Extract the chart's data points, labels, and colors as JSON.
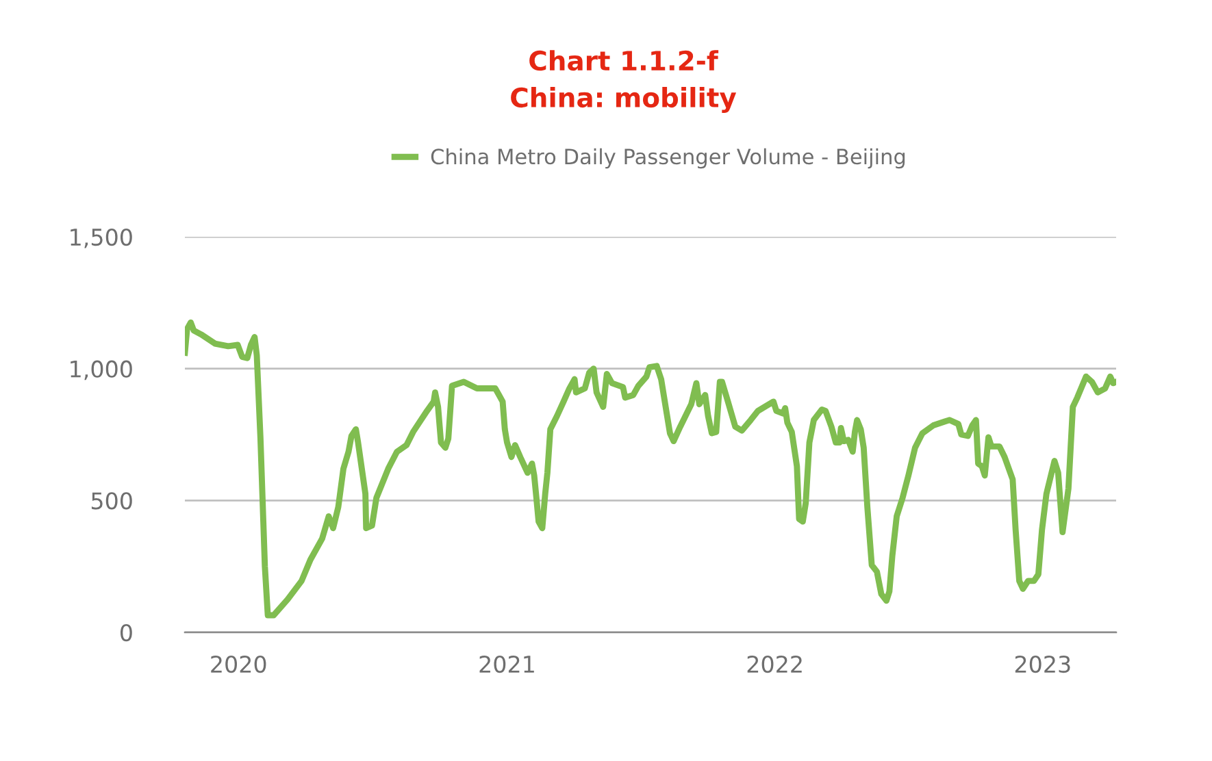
{
  "chart_data": {
    "type": "line",
    "title": "Chart 1.1.2-f",
    "subtitle": "China: mobility",
    "x": [
      "2019-10-20",
      "2019-10-23",
      "2019-10-28",
      "2019-11-01",
      "2019-11-11",
      "2019-11-30",
      "2019-12-18",
      "2019-12-31",
      "2020-01-06",
      "2020-01-13",
      "2020-01-18",
      "2020-01-23",
      "2020-01-26",
      "2020-01-31",
      "2020-02-06",
      "2020-02-10",
      "2020-02-18",
      "2020-03-08",
      "2020-03-27",
      "2020-04-08",
      "2020-04-24",
      "2020-05-03",
      "2020-05-09",
      "2020-05-16",
      "2020-05-23",
      "2020-05-30",
      "2020-06-03",
      "2020-06-09",
      "2020-06-12",
      "2020-06-22",
      "2020-06-23",
      "2020-07-01",
      "2020-07-07",
      "2020-07-23",
      "2020-08-04",
      "2020-08-17",
      "2020-08-26",
      "2020-09-14",
      "2020-09-23",
      "2020-09-25",
      "2020-09-29",
      "2020-10-03",
      "2020-10-09",
      "2020-10-13",
      "2020-10-18",
      "2020-11-03",
      "2020-11-21",
      "2020-12-10",
      "2020-12-16",
      "2020-12-21",
      "2020-12-26",
      "2020-12-29",
      "2021-01-01",
      "2021-01-07",
      "2021-01-12",
      "2021-01-19",
      "2021-01-29",
      "2021-02-04",
      "2021-02-07",
      "2021-02-10",
      "2021-02-13",
      "2021-02-18",
      "2021-02-22",
      "2021-02-25",
      "2021-03-01",
      "2021-03-10",
      "2021-03-19",
      "2021-03-27",
      "2021-04-03",
      "2021-04-05",
      "2021-04-17",
      "2021-04-23",
      "2021-04-29",
      "2021-05-03",
      "2021-05-12",
      "2021-05-17",
      "2021-05-24",
      "2021-06-08",
      "2021-06-11",
      "2021-06-22",
      "2021-06-29",
      "2021-07-10",
      "2021-07-14",
      "2021-07-24",
      "2021-07-30",
      "2021-08-06",
      "2021-08-11",
      "2021-08-16",
      "2021-08-25",
      "2021-09-09",
      "2021-09-16",
      "2021-09-20",
      "2021-09-28",
      "2021-10-02",
      "2021-10-07",
      "2021-10-13",
      "2021-10-18",
      "2021-10-21",
      "2021-10-29",
      "2021-11-08",
      "2021-11-17",
      "2021-11-29",
      "2021-12-09",
      "2021-12-21",
      "2021-12-30",
      "2022-01-03",
      "2022-01-12",
      "2022-01-15",
      "2022-01-18",
      "2022-01-24",
      "2022-01-31",
      "2022-02-03",
      "2022-02-08",
      "2022-02-12",
      "2022-02-17",
      "2022-02-23",
      "2022-03-06",
      "2022-03-11",
      "2022-03-19",
      "2022-03-25",
      "2022-03-30",
      "2022-04-01",
      "2022-04-05",
      "2022-04-11",
      "2022-04-17",
      "2022-04-20",
      "2022-04-23",
      "2022-04-28",
      "2022-05-02",
      "2022-05-07",
      "2022-05-13",
      "2022-05-20",
      "2022-05-26",
      "2022-06-02",
      "2022-06-06",
      "2022-06-10",
      "2022-06-16",
      "2022-06-24",
      "2022-07-02",
      "2022-07-11",
      "2022-07-21",
      "2022-08-05",
      "2022-08-21",
      "2022-08-27",
      "2022-09-08",
      "2022-09-12",
      "2022-09-21",
      "2022-09-27",
      "2022-10-02",
      "2022-10-05",
      "2022-10-10",
      "2022-10-14",
      "2022-10-19",
      "2022-10-23",
      "2022-11-03",
      "2022-11-10",
      "2022-11-21",
      "2022-11-25",
      "2022-11-30",
      "2022-12-05",
      "2022-12-12",
      "2022-12-20",
      "2022-12-26",
      "2022-12-31",
      "2023-01-06",
      "2023-01-17",
      "2023-01-22",
      "2023-01-28",
      "2023-02-05",
      "2023-02-11",
      "2023-02-17",
      "2023-03-01",
      "2023-03-09",
      "2023-03-17",
      "2023-03-27",
      "2023-04-03",
      "2023-04-07",
      "2023-04-11"
    ],
    "series": [
      {
        "name": "China Metro Daily Passenger Volume - Beijing",
        "color": "#80bd50",
        "values": [
          1060,
          1150,
          1175,
          1145,
          1130,
          1095,
          1085,
          1090,
          1045,
          1040,
          1090,
          1120,
          1050,
          735,
          250,
          65,
          65,
          125,
          195,
          275,
          355,
          440,
          395,
          475,
          620,
          685,
          745,
          770,
          720,
          525,
          395,
          405,
          510,
          620,
          685,
          710,
          760,
          840,
          875,
          910,
          855,
          720,
          700,
          735,
          935,
          950,
          925,
          925,
          925,
          900,
          875,
          770,
          720,
          665,
          710,
          665,
          605,
          640,
          595,
          510,
          420,
          395,
          525,
          605,
          770,
          820,
          875,
          925,
          960,
          910,
          925,
          985,
          1000,
          910,
          855,
          980,
          945,
          930,
          890,
          900,
          935,
          970,
          1005,
          1010,
          960,
          840,
          755,
          725,
          780,
          865,
          945,
          865,
          900,
          820,
          755,
          760,
          950,
          950,
          875,
          780,
          765,
          805,
          840,
          860,
          875,
          840,
          830,
          850,
          795,
          760,
          630,
          430,
          420,
          490,
          720,
          805,
          845,
          840,
          780,
          720,
          720,
          775,
          725,
          730,
          685,
          760,
          805,
          770,
          700,
          475,
          255,
          230,
          145,
          120,
          155,
          290,
          440,
          510,
          595,
          700,
          755,
          785,
          800,
          805,
          790,
          750,
          745,
          785,
          805,
          640,
          630,
          595,
          740,
          705,
          705,
          665,
          580,
          390,
          195,
          165,
          195,
          195,
          220,
          390,
          525,
          650,
          605,
          380,
          545,
          855,
          890,
          970,
          950,
          910,
          925,
          970,
          945,
          950
        ]
      }
    ],
    "xlim": [
      "2019-10-20",
      "2023-04-11"
    ],
    "xticks": [
      {
        "value": "2020-01-01",
        "label": "2020"
      },
      {
        "value": "2021-01-01",
        "label": "2021"
      },
      {
        "value": "2022-01-01",
        "label": "2022"
      },
      {
        "value": "2023-01-01",
        "label": "2023"
      }
    ],
    "ylim": [
      0,
      1500
    ],
    "yticks": [
      0,
      500,
      {
        "value": 1000,
        "label": "1,000"
      },
      {
        "value": 1500,
        "label": "1,500"
      }
    ],
    "grid": "y",
    "legend": "top",
    "marker": "none",
    "line_style": "solid"
  }
}
